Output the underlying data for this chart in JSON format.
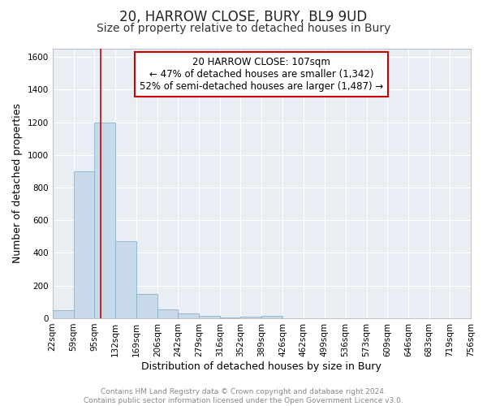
{
  "title": "20, HARROW CLOSE, BURY, BL9 9UD",
  "subtitle": "Size of property relative to detached houses in Bury",
  "xlabel": "Distribution of detached houses by size in Bury",
  "ylabel": "Number of detached properties",
  "bin_edges": [
    22,
    59,
    95,
    132,
    169,
    206,
    242,
    279,
    316,
    352,
    389,
    426,
    462,
    499,
    536,
    573,
    609,
    646,
    683,
    719,
    756
  ],
  "bar_heights": [
    50,
    900,
    1200,
    470,
    150,
    55,
    30,
    15,
    5,
    12,
    15,
    0,
    0,
    0,
    0,
    0,
    0,
    0,
    0,
    0
  ],
  "bar_color": "#c8daea",
  "bar_edgecolor": "#8ab0cc",
  "vline_x": 107,
  "vline_color": "#cc0000",
  "ylim": [
    0,
    1650
  ],
  "yticks": [
    0,
    200,
    400,
    600,
    800,
    1000,
    1200,
    1400,
    1600
  ],
  "annotation_title": "20 HARROW CLOSE: 107sqm",
  "annotation_line1": "← 47% of detached houses are smaller (1,342)",
  "annotation_line2": "52% of semi-detached houses are larger (1,487) →",
  "annotation_box_color": "#cc0000",
  "footer_line1": "Contains HM Land Registry data © Crown copyright and database right 2024.",
  "footer_line2": "Contains public sector information licensed under the Open Government Licence v3.0.",
  "bg_color": "#e8eef4",
  "grid_color": "#ffffff",
  "title_fontsize": 12,
  "subtitle_fontsize": 10,
  "axis_label_fontsize": 9,
  "tick_fontsize": 7.5,
  "annotation_fontsize": 8.5,
  "footer_fontsize": 6.5
}
